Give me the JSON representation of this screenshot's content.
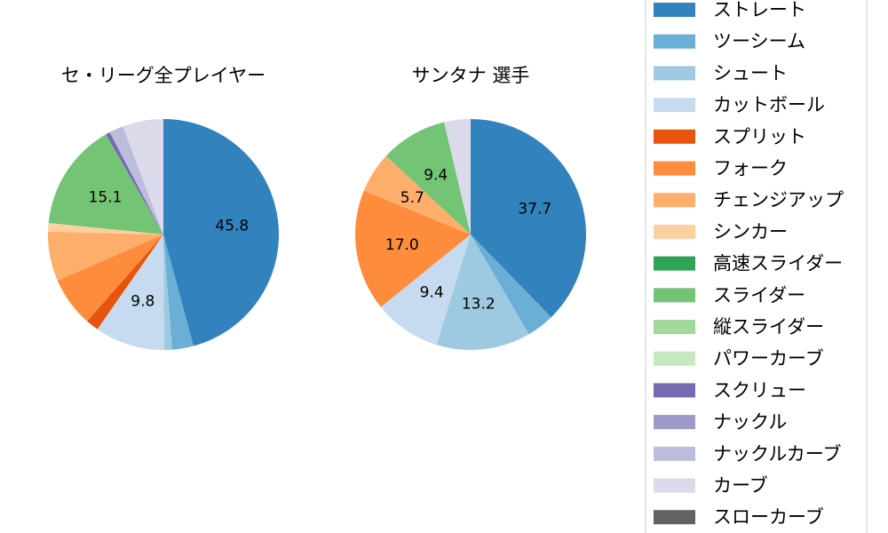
{
  "chart_data": [
    {
      "type": "pie",
      "title": "セ・リーグ全プレイヤー",
      "slices": [
        {
          "label": "ストレート",
          "value": 45.8,
          "color": "#3182bd",
          "show_label": true
        },
        {
          "label": "ツーシーム",
          "value": 3.0,
          "color": "#6baed6",
          "show_label": false
        },
        {
          "label": "シュート",
          "value": 1.1,
          "color": "#9ecae1",
          "show_label": false
        },
        {
          "label": "カットボール",
          "value": 9.8,
          "color": "#c6dbef",
          "show_label": true
        },
        {
          "label": "スプリット",
          "value": 1.8,
          "color": "#e6550d",
          "show_label": false
        },
        {
          "label": "フォーク",
          "value": 7.0,
          "color": "#fd8d3c",
          "show_label": false
        },
        {
          "label": "チェンジアップ",
          "value": 6.9,
          "color": "#fdae6b",
          "show_label": false
        },
        {
          "label": "シンカー",
          "value": 1.2,
          "color": "#fdd0a2",
          "show_label": false
        },
        {
          "label": "スライダー",
          "value": 15.1,
          "color": "#74c476",
          "show_label": true
        },
        {
          "label": "スクリュー",
          "value": 0.6,
          "color": "#756bb1",
          "show_label": false
        },
        {
          "label": "ナックルカーブ",
          "value": 2.0,
          "color": "#bcbddc",
          "show_label": false
        },
        {
          "label": "カーブ",
          "value": 5.7,
          "color": "#dadaeb",
          "show_label": false
        }
      ]
    },
    {
      "type": "pie",
      "title": "サンタナ  選手",
      "slices": [
        {
          "label": "ストレート",
          "value": 37.7,
          "color": "#3182bd",
          "show_label": true
        },
        {
          "label": "ツーシーム",
          "value": 3.9,
          "color": "#6baed6",
          "show_label": false
        },
        {
          "label": "シュート",
          "value": 13.2,
          "color": "#9ecae1",
          "show_label": true
        },
        {
          "label": "カットボール",
          "value": 9.4,
          "color": "#c6dbef",
          "show_label": true
        },
        {
          "label": "フォーク",
          "value": 17.0,
          "color": "#fd8d3c",
          "show_label": true
        },
        {
          "label": "チェンジアップ",
          "value": 5.7,
          "color": "#fdae6b",
          "show_label": true
        },
        {
          "label": "スライダー",
          "value": 9.4,
          "color": "#74c476",
          "show_label": true
        },
        {
          "label": "カーブ",
          "value": 3.7,
          "color": "#dadaeb",
          "show_label": false
        }
      ]
    }
  ],
  "legend": {
    "items": [
      {
        "label": "ストレート",
        "color": "#3182bd"
      },
      {
        "label": "ツーシーム",
        "color": "#6baed6"
      },
      {
        "label": "シュート",
        "color": "#9ecae1"
      },
      {
        "label": "カットボール",
        "color": "#c6dbef"
      },
      {
        "label": "スプリット",
        "color": "#e6550d"
      },
      {
        "label": "フォーク",
        "color": "#fd8d3c"
      },
      {
        "label": "チェンジアップ",
        "color": "#fdae6b"
      },
      {
        "label": "シンカー",
        "color": "#fdd0a2"
      },
      {
        "label": "高速スライダー",
        "color": "#31a354"
      },
      {
        "label": "スライダー",
        "color": "#74c476"
      },
      {
        "label": "縦スライダー",
        "color": "#a1d99b"
      },
      {
        "label": "パワーカーブ",
        "color": "#c7e9c0"
      },
      {
        "label": "スクリュー",
        "color": "#756bb1"
      },
      {
        "label": "ナックル",
        "color": "#9e9ac8"
      },
      {
        "label": "ナックルカーブ",
        "color": "#bcbddc"
      },
      {
        "label": "カーブ",
        "color": "#dadaeb"
      },
      {
        "label": "スローカーブ",
        "color": "#636363"
      }
    ]
  }
}
